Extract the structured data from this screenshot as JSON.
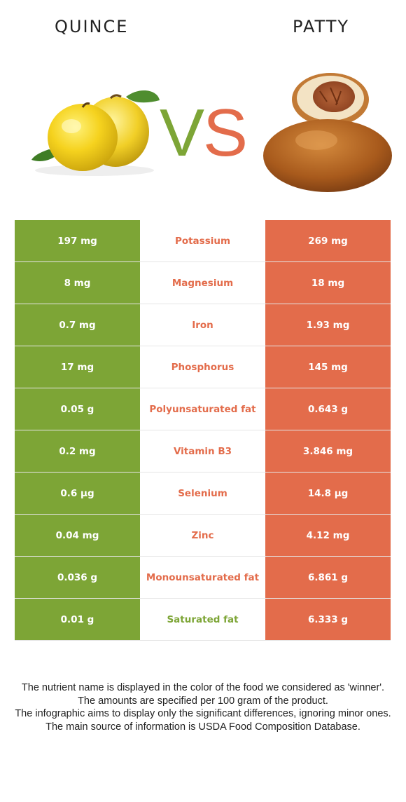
{
  "header": {
    "left_food": "QUINCE",
    "right_food": "PATTY",
    "vs_left_letter": "V",
    "vs_right_letter": "S"
  },
  "colors": {
    "left_food": "#7da536",
    "right_food": "#e36c4b"
  },
  "illustrations": {
    "left": "quince-fruit-image",
    "right": "patty-bun-image"
  },
  "rows": [
    {
      "left": "197 mg",
      "nutrient": "Potassium",
      "right": "269 mg",
      "winner": "right"
    },
    {
      "left": "8 mg",
      "nutrient": "Magnesium",
      "right": "18 mg",
      "winner": "right"
    },
    {
      "left": "0.7 mg",
      "nutrient": "Iron",
      "right": "1.93 mg",
      "winner": "right"
    },
    {
      "left": "17 mg",
      "nutrient": "Phosphorus",
      "right": "145 mg",
      "winner": "right"
    },
    {
      "left": "0.05 g",
      "nutrient": "Polyunsaturated fat",
      "right": "0.643 g",
      "winner": "right"
    },
    {
      "left": "0.2 mg",
      "nutrient": "Vitamin B3",
      "right": "3.846 mg",
      "winner": "right"
    },
    {
      "left": "0.6 µg",
      "nutrient": "Selenium",
      "right": "14.8 µg",
      "winner": "right"
    },
    {
      "left": "0.04 mg",
      "nutrient": "Zinc",
      "right": "4.12 mg",
      "winner": "right"
    },
    {
      "left": "0.036 g",
      "nutrient": "Monounsaturated fat",
      "right": "6.861 g",
      "winner": "right"
    },
    {
      "left": "0.01 g",
      "nutrient": "Saturated fat",
      "right": "6.333 g",
      "winner": "left"
    }
  ],
  "footnote": [
    "The nutrient name is displayed in the color of the food we considered as 'winner'.",
    "The amounts are specified per 100 gram of the product.",
    "The infographic aims to display only the significant differences, ignoring minor ones.",
    "The main source of information is USDA Food Composition Database."
  ]
}
